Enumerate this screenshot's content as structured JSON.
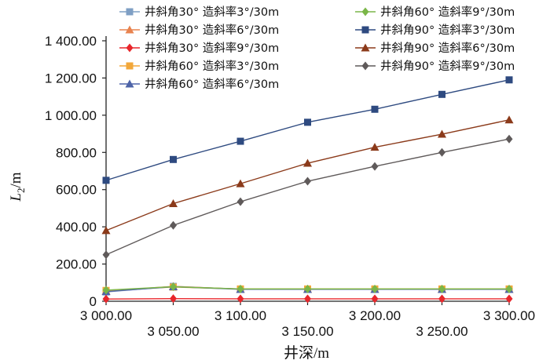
{
  "chart_data": {
    "type": "line",
    "xlabel": "井深/m",
    "ylabel_main": "L",
    "ylabel_sub": "2",
    "ylabel_unit": "/m",
    "x": [
      3000,
      3050,
      3100,
      3150,
      3200,
      3250,
      3300
    ],
    "x_tick_labels": [
      "3 000.00",
      "3 050.00",
      "3 100.00",
      "3 150.00",
      "3 200.00",
      "3 250.00",
      "3 300.00"
    ],
    "y_ticks": [
      0,
      200,
      400,
      600,
      800,
      1000,
      1200,
      1400
    ],
    "y_tick_labels": [
      "0",
      "200.00",
      "400.00",
      "600.00",
      "800.00",
      "1 000.00",
      "1 200.00",
      "1 400.00"
    ],
    "xlim": [
      3000,
      3300
    ],
    "ylim": [
      0,
      1400
    ],
    "grid": false,
    "legend": "top",
    "series": [
      {
        "name": "井斜角30°  造斜率3°/30m",
        "color": "#7f9fc4",
        "marker": "square",
        "values": [
          50,
          80,
          65,
          65,
          65,
          65,
          65
        ]
      },
      {
        "name": "井斜角30°  造斜率6°/30m",
        "color": "#e8834f",
        "marker": "triangle",
        "values": [
          55,
          80,
          65,
          65,
          65,
          65,
          65
        ]
      },
      {
        "name": "井斜角30°  造斜率9°/30m",
        "color": "#e8262b",
        "marker": "diamond",
        "values": [
          12,
          14,
          13,
          13,
          13,
          13,
          13
        ]
      },
      {
        "name": "井斜角60°  造斜率3°/30m",
        "color": "#f2a73a",
        "marker": "square",
        "values": [
          58,
          76,
          66,
          66,
          66,
          66,
          66
        ]
      },
      {
        "name": "井斜角60°  造斜率6°/30m",
        "color": "#4e64a8",
        "marker": "triangle",
        "values": [
          52,
          78,
          64,
          64,
          64,
          64,
          64
        ]
      },
      {
        "name": "井斜角60°  造斜率9°/30m",
        "color": "#7ab648",
        "marker": "diamond",
        "values": [
          60,
          78,
          66,
          66,
          66,
          66,
          66
        ]
      },
      {
        "name": "井斜角90°  造斜率3°/30m",
        "color": "#2e4a80",
        "marker": "square",
        "values": [
          650,
          762,
          860,
          962,
          1032,
          1112,
          1190
        ]
      },
      {
        "name": "井斜角90°  造斜率6°/30m",
        "color": "#8b3a1a",
        "marker": "triangle",
        "values": [
          380,
          525,
          632,
          742,
          828,
          898,
          975
        ]
      },
      {
        "name": "井斜角90°  造斜率9°/30m",
        "color": "#5f5a5a",
        "marker": "diamond",
        "values": [
          250,
          408,
          535,
          645,
          725,
          800,
          872
        ]
      }
    ]
  }
}
